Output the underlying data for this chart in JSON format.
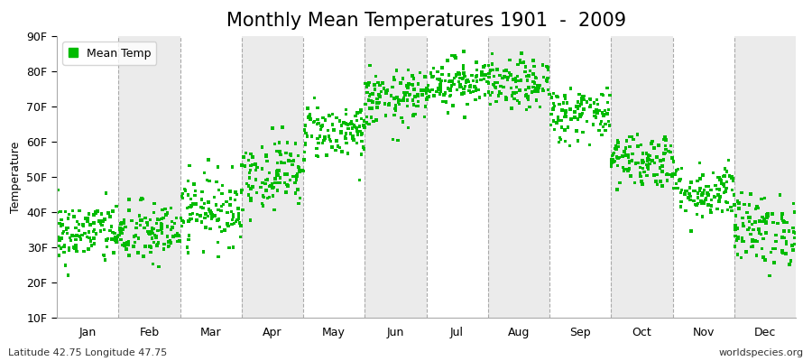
{
  "title": "Monthly Mean Temperatures 1901  -  2009",
  "ylabel": "Temperature",
  "xlabel_months": [
    "Jan",
    "Feb",
    "Mar",
    "Apr",
    "May",
    "Jun",
    "Jul",
    "Aug",
    "Sep",
    "Oct",
    "Nov",
    "Dec"
  ],
  "ylim": [
    10,
    90
  ],
  "yticks": [
    10,
    20,
    30,
    40,
    50,
    60,
    70,
    80,
    90
  ],
  "ytick_labels": [
    "10F",
    "20F",
    "30F",
    "40F",
    "50F",
    "60F",
    "70F",
    "80F",
    "90F"
  ],
  "monthly_means": [
    34,
    34,
    41,
    51,
    63,
    72,
    77,
    76,
    68,
    55,
    46,
    35
  ],
  "monthly_stds": [
    4.5,
    4.5,
    5,
    5,
    4,
    4,
    3.5,
    3.5,
    4,
    4,
    4,
    5
  ],
  "n_years": 109,
  "marker_color": "#00bb00",
  "marker_size": 2.5,
  "legend_label": "Mean Temp",
  "bg_color": "#ffffff",
  "plot_bg_color": "#ffffff",
  "band_color_even": "#ffffff",
  "band_color_odd": "#ebebeb",
  "dash_color": "#aaaaaa",
  "bottom_left_text": "Latitude 42.75 Longitude 47.75",
  "bottom_right_text": "worldspecies.org",
  "title_fontsize": 15,
  "axis_fontsize": 9,
  "tick_fontsize": 9
}
